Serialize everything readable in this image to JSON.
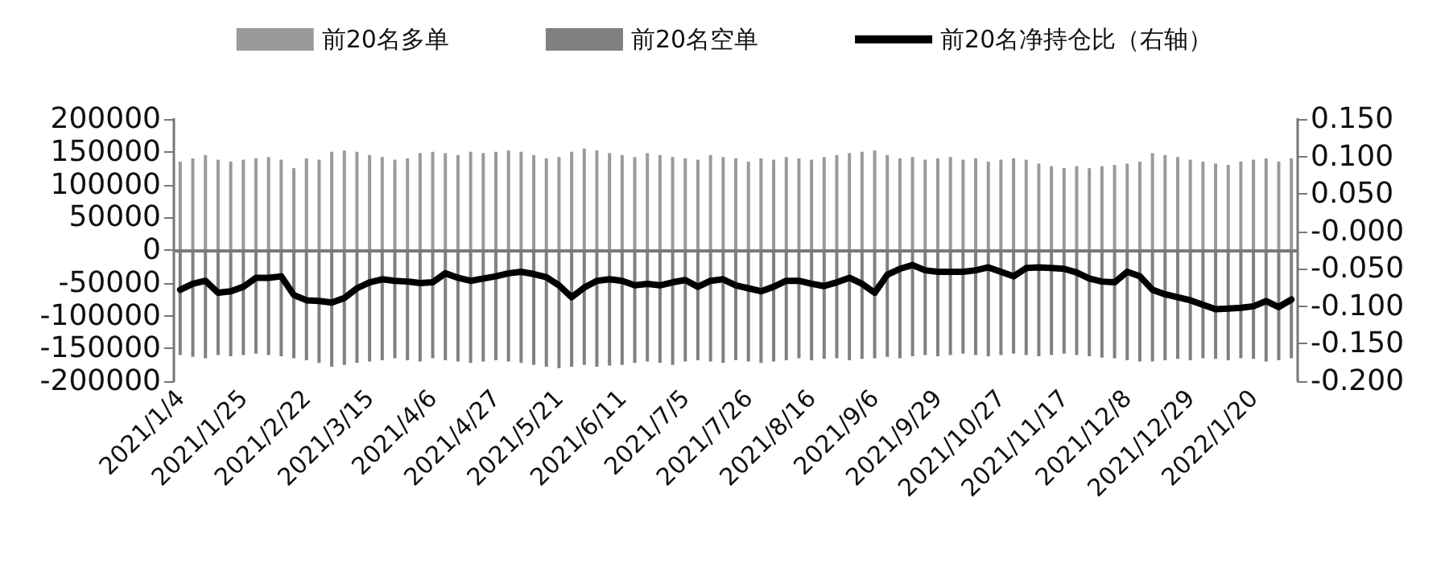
{
  "chart_data": {
    "type": "bar",
    "categories": [
      "2021/1/4",
      null,
      null,
      null,
      null,
      "2021/1/25",
      null,
      null,
      null,
      null,
      "2021/2/22",
      null,
      null,
      null,
      null,
      "2021/3/15",
      null,
      null,
      null,
      null,
      "2021/4/6",
      null,
      null,
      null,
      null,
      "2021/4/27",
      null,
      null,
      null,
      null,
      "2021/5/21",
      null,
      null,
      null,
      null,
      "2021/6/11",
      null,
      null,
      null,
      null,
      "2021/7/5",
      null,
      null,
      null,
      null,
      "2021/7/26",
      null,
      null,
      null,
      null,
      "2021/8/16",
      null,
      null,
      null,
      null,
      "2021/9/6",
      null,
      null,
      null,
      null,
      "2021/9/29",
      null,
      null,
      null,
      null,
      "2021/10/27",
      null,
      null,
      null,
      null,
      "2021/11/17",
      null,
      null,
      null,
      null,
      "2021/12/8",
      null,
      null,
      null,
      null,
      "2021/12/29",
      null,
      null,
      null,
      null,
      "2022/1/20",
      null,
      null,
      null
    ],
    "series": [
      {
        "name": "前20名多单",
        "color": "#9a9a9a",
        "values": [
          135000,
          140000,
          145000,
          138000,
          135000,
          138000,
          140000,
          142000,
          138000,
          125000,
          140000,
          138000,
          150000,
          152000,
          150000,
          145000,
          142000,
          138000,
          140000,
          148000,
          150000,
          148000,
          145000,
          150000,
          148000,
          150000,
          152000,
          150000,
          145000,
          140000,
          142000,
          150000,
          155000,
          152000,
          148000,
          145000,
          142000,
          148000,
          145000,
          142000,
          140000,
          138000,
          145000,
          142000,
          140000,
          135000,
          140000,
          138000,
          142000,
          140000,
          138000,
          142000,
          145000,
          148000,
          150000,
          152000,
          145000,
          140000,
          142000,
          138000,
          140000,
          142000,
          138000,
          140000,
          135000,
          138000,
          140000,
          138000,
          132000,
          128000,
          125000,
          128000,
          125000,
          128000,
          130000,
          132000,
          135000,
          148000,
          145000,
          142000,
          138000,
          135000,
          132000,
          130000,
          135000,
          138000,
          140000,
          135000,
          140000
        ]
      },
      {
        "name": "前20名空单",
        "color": "#808080",
        "values": [
          -160000,
          -163000,
          -165000,
          -160000,
          -162000,
          -160000,
          -158000,
          -160000,
          -162000,
          -165000,
          -168000,
          -172000,
          -178000,
          -175000,
          -172000,
          -170000,
          -168000,
          -165000,
          -168000,
          -170000,
          -165000,
          -168000,
          -170000,
          -172000,
          -170000,
          -168000,
          -170000,
          -172000,
          -175000,
          -178000,
          -180000,
          -178000,
          -175000,
          -178000,
          -176000,
          -175000,
          -172000,
          -170000,
          -172000,
          -175000,
          -170000,
          -168000,
          -170000,
          -172000,
          -168000,
          -170000,
          -172000,
          -170000,
          -168000,
          -165000,
          -168000,
          -166000,
          -165000,
          -168000,
          -166000,
          -165000,
          -163000,
          -165000,
          -162000,
          -160000,
          -162000,
          -160000,
          -158000,
          -160000,
          -162000,
          -160000,
          -158000,
          -160000,
          -162000,
          -160000,
          -158000,
          -160000,
          -162000,
          -164000,
          -165000,
          -168000,
          -170000,
          -170000,
          -168000,
          -166000,
          -168000,
          -165000,
          -166000,
          -168000,
          -165000,
          -166000,
          -170000,
          -168000,
          -165000
        ]
      },
      {
        "name": "前20名净持仓比（右轴）",
        "type": "line",
        "axis": "y2",
        "color": "#000000",
        "values": [
          -0.078,
          -0.07,
          -0.066,
          -0.082,
          -0.08,
          -0.074,
          -0.062,
          -0.062,
          -0.06,
          -0.085,
          -0.092,
          -0.093,
          -0.095,
          -0.089,
          -0.076,
          -0.068,
          -0.064,
          -0.066,
          -0.067,
          -0.069,
          -0.068,
          -0.056,
          -0.062,
          -0.066,
          -0.063,
          -0.06,
          -0.056,
          -0.054,
          -0.057,
          -0.061,
          -0.072,
          -0.088,
          -0.075,
          -0.066,
          -0.064,
          -0.066,
          -0.072,
          -0.07,
          -0.072,
          -0.068,
          -0.065,
          -0.074,
          -0.066,
          -0.064,
          -0.072,
          -0.076,
          -0.08,
          -0.074,
          -0.066,
          -0.066,
          -0.07,
          -0.073,
          -0.068,
          -0.062,
          -0.07,
          -0.082,
          -0.058,
          -0.05,
          -0.045,
          -0.052,
          -0.054,
          -0.054,
          -0.054,
          -0.052,
          -0.048,
          -0.054,
          -0.06,
          -0.049,
          -0.048,
          -0.049,
          -0.05,
          -0.055,
          -0.063,
          -0.067,
          -0.068,
          -0.054,
          -0.06,
          -0.078,
          -0.084,
          -0.088,
          -0.092,
          -0.098,
          -0.104,
          -0.103,
          -0.102,
          -0.1,
          -0.093,
          -0.101,
          -0.091
        ]
      }
    ],
    "ylim": [
      -200000,
      200000
    ],
    "yticks": [
      -200000,
      -150000,
      -100000,
      -50000,
      0,
      50000,
      100000,
      150000,
      200000
    ],
    "y2lim": [
      -0.2,
      0.15
    ],
    "y2ticks": [
      {
        "value": -0.2,
        "label": "-0.200"
      },
      {
        "value": -0.15,
        "label": "-0.150"
      },
      {
        "value": -0.1,
        "label": "-0.100"
      },
      {
        "value": -0.05,
        "label": "-0.050"
      },
      {
        "value": 0,
        "label": "-0.000"
      },
      {
        "value": 0.05,
        "label": "0.050"
      },
      {
        "value": 0.1,
        "label": "0.100"
      },
      {
        "value": 0.15,
        "label": "0.150"
      }
    ],
    "ref_lines": [
      {
        "axis": "y",
        "value": 0,
        "color": "#7a7a7a"
      }
    ],
    "grid": false,
    "legend": "top",
    "marker": "none",
    "line_style": "solid"
  }
}
